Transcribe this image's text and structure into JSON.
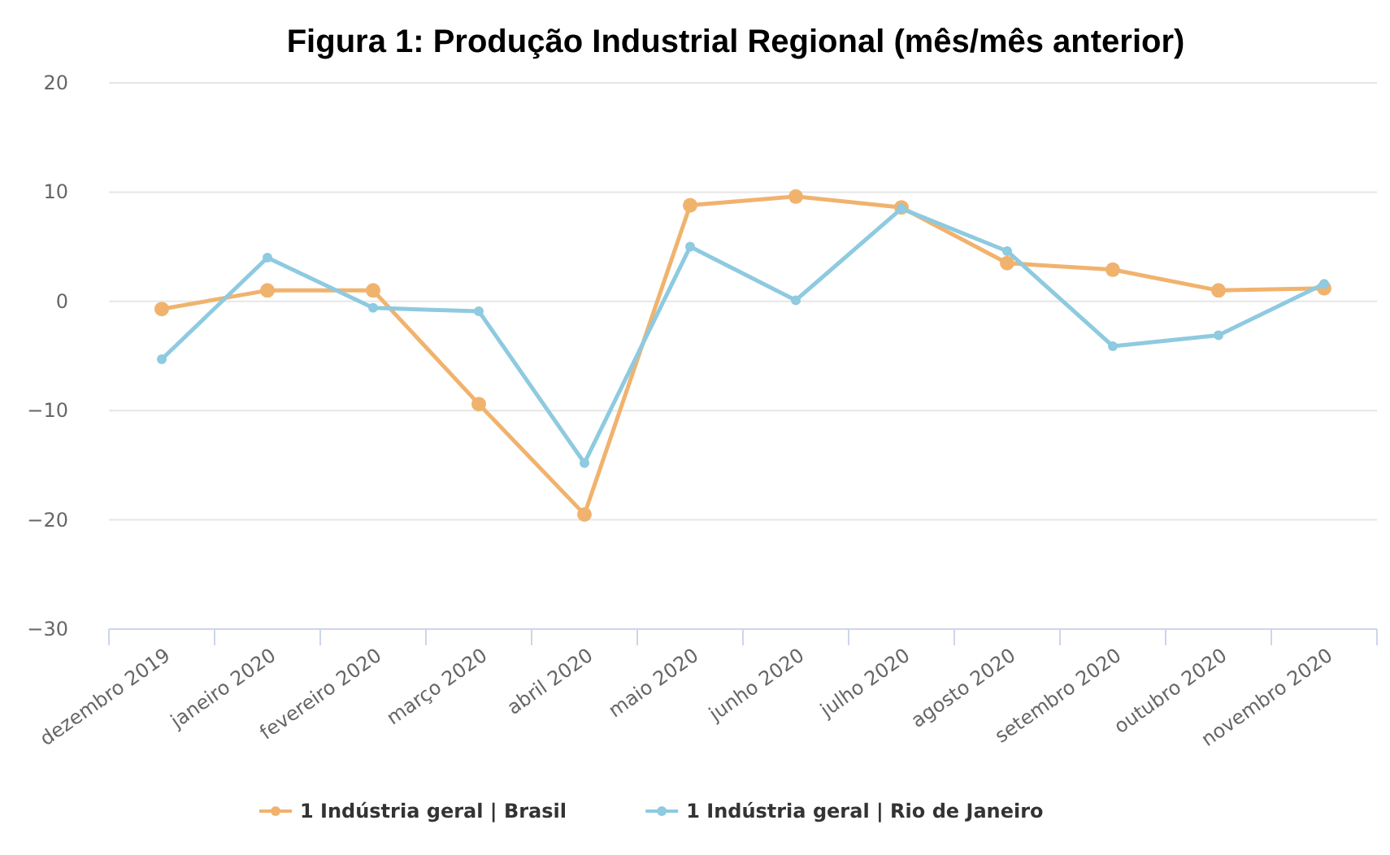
{
  "chart_data": {
    "type": "line",
    "title": "Figura 1: Produção Industrial Regional (mês/mês anterior)",
    "categories": [
      "dezembro 2019",
      "janeiro 2020",
      "fevereiro 2020",
      "março 2020",
      "abril 2020",
      "maio 2020",
      "junho 2020",
      "julho 2020",
      "agosto 2020",
      "setembro 2020",
      "outubro 2020",
      "novembro 2020"
    ],
    "series": [
      {
        "name": "1 Indústria geral | Brasil",
        "color": "#f0b36e",
        "values": [
          -0.7,
          1.0,
          1.0,
          -9.4,
          -19.5,
          8.8,
          9.6,
          8.6,
          3.5,
          2.9,
          1.0,
          1.2
        ]
      },
      {
        "name": "1 Indústria geral | Rio de Janeiro",
        "color": "#8ecae0",
        "values": [
          -5.3,
          4.0,
          -0.6,
          -0.9,
          -14.8,
          5.0,
          0.1,
          8.5,
          4.6,
          -4.1,
          -3.1,
          1.6
        ]
      }
    ],
    "ylim": [
      -30,
      20
    ],
    "yticks": [
      -30,
      -20,
      -10,
      0,
      10,
      20
    ],
    "grid": "y",
    "legend": "bottom",
    "marker": "circle",
    "line_style": "solid"
  }
}
